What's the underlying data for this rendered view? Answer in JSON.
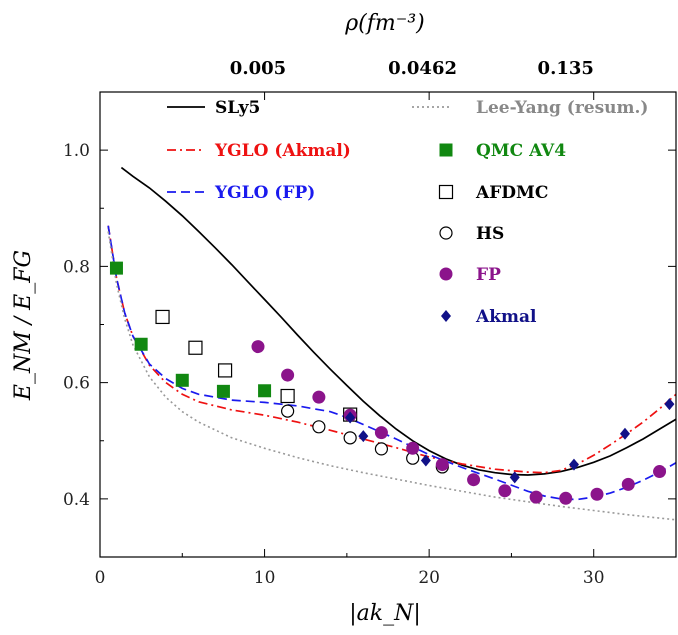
{
  "chart_data": {
    "type": "line",
    "xlabel": "|ak_N|",
    "ylabel": "E_NM / E_FG",
    "top_label": "ρ(fm⁻³)",
    "xlim": [
      0,
      35
    ],
    "ylim": [
      0.3,
      1.1
    ],
    "x_ticks": [
      0,
      10,
      20,
      30
    ],
    "x_tick_labels": [
      "0",
      "10",
      "20",
      "30"
    ],
    "y_ticks": [
      0.4,
      0.6,
      0.8,
      1.0
    ],
    "y_tick_labels": [
      "0.4",
      "0.6",
      "0.8",
      "1.0"
    ],
    "top_ticks": [
      {
        "x": 9.6,
        "label": "0.005"
      },
      {
        "x": 19.6,
        "label": "0.0462"
      },
      {
        "x": 28.3,
        "label": "0.135"
      }
    ],
    "grid": false,
    "legend_position": "inside-top",
    "series": [
      {
        "name": "SLy5",
        "kind": "line",
        "style": "solid",
        "color": "#000000",
        "x": [
          1.3,
          2,
          3,
          4,
          5,
          6,
          7,
          8,
          9,
          10,
          11,
          12,
          13,
          14,
          15,
          16,
          17,
          18,
          19,
          20,
          21,
          22,
          23,
          24,
          25,
          26,
          27,
          28,
          29,
          30,
          31,
          32,
          33,
          34,
          35
        ],
        "y": [
          0.97,
          0.955,
          0.935,
          0.912,
          0.887,
          0.86,
          0.832,
          0.803,
          0.773,
          0.743,
          0.713,
          0.682,
          0.652,
          0.623,
          0.595,
          0.568,
          0.543,
          0.52,
          0.5,
          0.483,
          0.469,
          0.458,
          0.45,
          0.445,
          0.442,
          0.441,
          0.443,
          0.447,
          0.454,
          0.463,
          0.474,
          0.488,
          0.503,
          0.52,
          0.537
        ]
      },
      {
        "name": "YGLO (Akmal)",
        "kind": "line",
        "style": "dashdot",
        "color": "#ee1111",
        "x": [
          0.5,
          1,
          1.5,
          2,
          3,
          4,
          5,
          6,
          8,
          10,
          12,
          14,
          16,
          18,
          20,
          22,
          24,
          26,
          27,
          28,
          29,
          30,
          31,
          32,
          33,
          34,
          35
        ],
        "y": [
          0.87,
          0.78,
          0.72,
          0.68,
          0.63,
          0.6,
          0.58,
          0.567,
          0.553,
          0.544,
          0.532,
          0.518,
          0.503,
          0.488,
          0.472,
          0.46,
          0.451,
          0.446,
          0.445,
          0.449,
          0.46,
          0.475,
          0.493,
          0.512,
          0.532,
          0.555,
          0.58
        ]
      },
      {
        "name": "YGLO (FP)",
        "kind": "line",
        "style": "dashed",
        "color": "#1a1aee",
        "x": [
          0.5,
          1,
          1.5,
          2,
          3,
          4,
          5,
          6,
          7,
          8,
          10,
          12,
          14,
          15,
          16,
          18,
          20,
          22,
          24,
          26,
          27,
          28,
          29,
          30,
          31,
          32,
          33,
          34,
          35
        ],
        "y": [
          0.87,
          0.78,
          0.72,
          0.68,
          0.632,
          0.607,
          0.59,
          0.58,
          0.575,
          0.57,
          0.566,
          0.56,
          0.55,
          0.54,
          0.528,
          0.503,
          0.476,
          0.454,
          0.434,
          0.413,
          0.405,
          0.4,
          0.399,
          0.403,
          0.41,
          0.42,
          0.432,
          0.446,
          0.462
        ]
      },
      {
        "name": "Lee-Yang (resum.)",
        "kind": "line",
        "style": "dotted",
        "color": "#999999",
        "x": [
          0.5,
          1,
          1.5,
          2,
          3,
          4,
          5,
          6,
          8,
          10,
          12,
          14,
          16,
          18,
          20,
          22,
          24,
          26,
          28,
          30,
          32,
          34,
          35
        ],
        "y": [
          0.86,
          0.77,
          0.71,
          0.665,
          0.61,
          0.575,
          0.55,
          0.532,
          0.505,
          0.487,
          0.471,
          0.457,
          0.445,
          0.434,
          0.423,
          0.413,
          0.403,
          0.395,
          0.387,
          0.38,
          0.373,
          0.367,
          0.364
        ]
      },
      {
        "name": "QMC AV4",
        "kind": "marker",
        "marker": "square-filled",
        "color": "#118811",
        "x": [
          1,
          2.5,
          5,
          7.5,
          10
        ],
        "y": [
          0.797,
          0.666,
          0.604,
          0.585,
          0.586
        ]
      },
      {
        "name": "AFDMC",
        "kind": "marker",
        "marker": "square-open",
        "color": "#000000",
        "x": [
          3.8,
          5.8,
          7.6,
          11.4,
          15.2
        ],
        "y": [
          0.713,
          0.66,
          0.621,
          0.577,
          0.545
        ]
      },
      {
        "name": "HS",
        "kind": "marker",
        "marker": "circle-open",
        "color": "#000000",
        "x": [
          11.4,
          13.3,
          15.2,
          17.1,
          19,
          20.8
        ],
        "y": [
          0.551,
          0.524,
          0.505,
          0.486,
          0.47,
          0.455
        ]
      },
      {
        "name": "FP",
        "kind": "marker",
        "marker": "circle-filled",
        "color": "#8b148b",
        "x": [
          9.6,
          11.4,
          13.3,
          15.2,
          17.1,
          19,
          20.8,
          22.7,
          24.6,
          26.5,
          28.3,
          30.2,
          32.1,
          34
        ],
        "y": [
          0.662,
          0.613,
          0.575,
          0.544,
          0.514,
          0.487,
          0.459,
          0.433,
          0.414,
          0.403,
          0.401,
          0.408,
          0.425,
          0.447
        ]
      },
      {
        "name": "Akmal",
        "kind": "marker",
        "marker": "diamond-filled",
        "color": "#111188",
        "x": [
          15.2,
          16,
          19.8,
          25.2,
          28.8,
          31.9,
          34.6
        ],
        "y": [
          0.54,
          0.508,
          0.466,
          0.437,
          0.459,
          0.512,
          0.563
        ]
      }
    ]
  }
}
